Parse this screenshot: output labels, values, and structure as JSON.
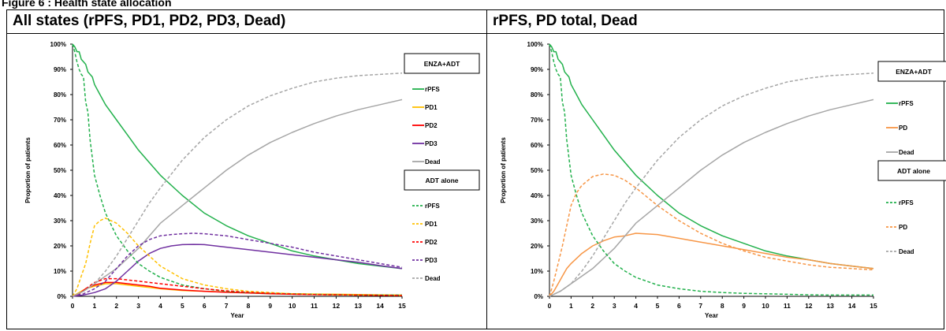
{
  "figure_caption": "Figure 6 : Health state allocation",
  "chart_data": [
    {
      "type": "line",
      "title": "All states (rPFS, PD1, PD2, PD3, Dead)",
      "xlabel": "Year",
      "ylabel": "Proportion of patients",
      "xlim": [
        0,
        15
      ],
      "ylim": [
        0,
        100
      ],
      "x_ticks": [
        "0",
        "1",
        "2",
        "3",
        "4",
        "5",
        "6",
        "7",
        "8",
        "9",
        "10",
        "11",
        "12",
        "13",
        "14",
        "15"
      ],
      "y_ticks": [
        "0%",
        "10%",
        "20%",
        "30%",
        "40%",
        "50%",
        "60%",
        "70%",
        "80%",
        "90%",
        "100%"
      ],
      "legend_groups": [
        {
          "header": "ENZA+ADT",
          "linestyle": "solid",
          "items": [
            "rPFS",
            "PD1",
            "PD2",
            "PD3",
            "Dead"
          ]
        },
        {
          "header": "ADT alone",
          "linestyle": "dashed",
          "items": [
            "rPFS",
            "PD1",
            "PD2",
            "PD3",
            "Dead"
          ]
        }
      ],
      "series": [
        {
          "name": "rPFS",
          "group": "ENZA+ADT",
          "color": "#22b14c",
          "dashed": false,
          "x": [
            0,
            0.1,
            0.2,
            0.3,
            0.4,
            0.5,
            0.6,
            0.7,
            0.8,
            0.9,
            1,
            1.25,
            1.5,
            2,
            2.5,
            3,
            3.5,
            4,
            5,
            6,
            7,
            8,
            9,
            10,
            11,
            12,
            13,
            14,
            15
          ],
          "y": [
            100,
            99,
            97,
            97,
            94,
            93,
            92,
            89,
            88,
            87,
            84,
            80,
            76,
            70,
            64,
            58,
            53,
            48,
            40,
            33,
            28,
            24,
            21,
            18,
            16,
            14.5,
            13,
            12,
            11
          ]
        },
        {
          "name": "PD1",
          "group": "ENZA+ADT",
          "color": "#ffc000",
          "dashed": false,
          "x": [
            0,
            0.3,
            0.6,
            1,
            1.5,
            2,
            2.5,
            3,
            3.5,
            4,
            5,
            6,
            7,
            8,
            9,
            10,
            11,
            12,
            13,
            14,
            15
          ],
          "y": [
            0,
            1.5,
            3,
            4,
            5,
            5,
            4.5,
            4,
            3.5,
            3,
            2.3,
            2,
            1.7,
            1.4,
            1.2,
            1,
            0.9,
            0.8,
            0.7,
            0.6,
            0.5
          ]
        },
        {
          "name": "PD2",
          "group": "ENZA+ADT",
          "color": "#ff0000",
          "dashed": false,
          "x": [
            0,
            0.3,
            0.6,
            1,
            1.5,
            2,
            2.5,
            3,
            3.5,
            4,
            5,
            6,
            7,
            8,
            9,
            10,
            11,
            12,
            13,
            14,
            15
          ],
          "y": [
            0,
            1,
            3,
            4.5,
            5.5,
            5.5,
            5,
            4.5,
            4,
            3.2,
            2.5,
            2,
            1.6,
            1.3,
            1,
            0.8,
            0.7,
            0.6,
            0.5,
            0.4,
            0.4
          ]
        },
        {
          "name": "PD3",
          "group": "ENZA+ADT",
          "color": "#7030a0",
          "dashed": false,
          "x": [
            0,
            0.5,
            1,
            1.5,
            2,
            2.5,
            3,
            3.5,
            4,
            4.5,
            5,
            5.5,
            6,
            7,
            8,
            9,
            10,
            11,
            12,
            13,
            14,
            15
          ],
          "y": [
            0,
            0.5,
            1.5,
            3,
            6,
            10,
            14,
            17,
            19,
            20,
            20.5,
            20.6,
            20.5,
            19.5,
            18.5,
            17.5,
            16.5,
            15.5,
            14.5,
            13.5,
            12.2,
            11
          ]
        },
        {
          "name": "Dead",
          "group": "ENZA+ADT",
          "color": "#a6a6a6",
          "dashed": false,
          "x": [
            0,
            0.5,
            1,
            1.5,
            2,
            2.5,
            3,
            3.5,
            4,
            5,
            6,
            7,
            8,
            9,
            10,
            11,
            12,
            13,
            14,
            15
          ],
          "y": [
            0,
            2,
            5,
            8,
            11,
            15,
            19,
            24,
            29,
            36,
            43,
            50,
            56,
            61,
            65,
            68.5,
            71.5,
            74,
            76,
            78
          ]
        },
        {
          "name": "rPFS",
          "group": "ADT alone",
          "color": "#22b14c",
          "dashed": true,
          "x": [
            0,
            0.1,
            0.2,
            0.3,
            0.4,
            0.5,
            0.55,
            0.6,
            0.7,
            0.8,
            0.9,
            1,
            1.25,
            1.5,
            2,
            2.5,
            3,
            3.5,
            4,
            5,
            6,
            7,
            8,
            9,
            10,
            11,
            12,
            13,
            14,
            15
          ],
          "y": [
            100,
            97,
            93,
            90,
            88,
            87,
            82,
            77,
            73,
            62,
            55,
            48,
            40,
            33,
            24,
            18,
            13,
            10,
            7.5,
            4.5,
            3,
            2,
            1.5,
            1.2,
            1,
            0.8,
            0.6,
            0.5,
            0.5,
            0.5
          ]
        },
        {
          "name": "PD1",
          "group": "ADT alone",
          "color": "#ffc000",
          "dashed": true,
          "x": [
            0,
            0.2,
            0.4,
            0.6,
            0.8,
            1,
            1.25,
            1.5,
            2,
            2.5,
            3,
            3.5,
            4,
            5,
            6,
            7,
            8,
            9,
            10,
            11,
            12,
            13,
            14,
            15
          ],
          "y": [
            0,
            3,
            8,
            13,
            21,
            28,
            30,
            31,
            29,
            25,
            20,
            16,
            12,
            7,
            4.5,
            3,
            2,
            1.5,
            1,
            0.8,
            0.6,
            0.5,
            0.4,
            0.3
          ]
        },
        {
          "name": "PD2",
          "group": "ADT alone",
          "color": "#ff0000",
          "dashed": true,
          "x": [
            0,
            0.3,
            0.6,
            1,
            1.5,
            2,
            2.5,
            3,
            3.5,
            4,
            5,
            6,
            7,
            8,
            9,
            10,
            11,
            12,
            13,
            14,
            15
          ],
          "y": [
            0,
            1,
            3,
            5.5,
            7,
            7,
            6.5,
            6,
            5.5,
            5,
            4,
            3,
            2.2,
            1.6,
            1.2,
            0.9,
            0.7,
            0.6,
            0.5,
            0.4,
            0.3
          ]
        },
        {
          "name": "PD3",
          "group": "ADT alone",
          "color": "#7030a0",
          "dashed": true,
          "x": [
            0,
            0.5,
            1,
            1.5,
            2,
            2.5,
            3,
            3.5,
            4,
            4.5,
            5,
            5.5,
            6,
            7,
            8,
            9,
            10,
            11,
            12,
            13,
            14,
            15
          ],
          "y": [
            0,
            1,
            3,
            6,
            11,
            16,
            20,
            22.5,
            24,
            24.5,
            24.8,
            25,
            24.8,
            24,
            22.5,
            21,
            19.5,
            17.5,
            16,
            14.5,
            13,
            11.5
          ]
        },
        {
          "name": "Dead",
          "group": "ADT alone",
          "color": "#a6a6a6",
          "dashed": true,
          "x": [
            0,
            0.5,
            1,
            1.5,
            2,
            2.5,
            3,
            3.5,
            4,
            5,
            6,
            7,
            8,
            9,
            10,
            11,
            12,
            13,
            14,
            15
          ],
          "y": [
            0,
            2,
            5,
            10,
            16,
            23,
            30,
            37,
            43,
            54,
            63,
            70,
            75.5,
            79.5,
            82.5,
            85,
            86.5,
            87.5,
            88,
            88.5
          ]
        }
      ]
    },
    {
      "type": "line",
      "title": "rPFS, PD total, Dead",
      "xlabel": "Year",
      "ylabel": "Proportion of patients",
      "xlim": [
        0,
        15
      ],
      "ylim": [
        0,
        100
      ],
      "x_ticks": [
        "0",
        "1",
        "2",
        "3",
        "4",
        "5",
        "6",
        "7",
        "8",
        "9",
        "10",
        "11",
        "12",
        "13",
        "14",
        "15"
      ],
      "y_ticks": [
        "0%",
        "10%",
        "20%",
        "30%",
        "40%",
        "50%",
        "60%",
        "70%",
        "80%",
        "90%",
        "100%"
      ],
      "legend_groups": [
        {
          "header": "ENZA+ADT",
          "linestyle": "solid",
          "items": [
            "rPFS",
            "PD",
            "Dead"
          ]
        },
        {
          "header": "ADT alone",
          "linestyle": "dashed",
          "items": [
            "rPFS",
            "PD",
            "Dead"
          ]
        }
      ],
      "series": [
        {
          "name": "rPFS",
          "group": "ENZA+ADT",
          "color": "#22b14c",
          "dashed": false,
          "x": [
            0,
            0.1,
            0.2,
            0.3,
            0.4,
            0.5,
            0.6,
            0.7,
            0.8,
            0.9,
            1,
            1.25,
            1.5,
            2,
            2.5,
            3,
            3.5,
            4,
            5,
            6,
            7,
            8,
            9,
            10,
            11,
            12,
            13,
            14,
            15
          ],
          "y": [
            100,
            99,
            97,
            97,
            94,
            93,
            92,
            89,
            88,
            87,
            84,
            80,
            76,
            70,
            64,
            58,
            53,
            48,
            40,
            33,
            28,
            24,
            21,
            18,
            16,
            14.5,
            13,
            12,
            11
          ]
        },
        {
          "name": "PD",
          "group": "ENZA+ADT",
          "color": "#f79646",
          "dashed": false,
          "x": [
            0,
            0.2,
            0.4,
            0.6,
            0.8,
            1,
            1.5,
            2,
            2.5,
            3,
            3.5,
            4,
            5,
            6,
            7,
            8,
            9,
            10,
            11,
            12,
            13,
            14,
            15
          ],
          "y": [
            0,
            2,
            5,
            8,
            11,
            13,
            17,
            20,
            22,
            23.5,
            24,
            25,
            24.5,
            23,
            21.5,
            20,
            18.5,
            17,
            15.5,
            14.5,
            13,
            12,
            11
          ]
        },
        {
          "name": "Dead",
          "group": "ENZA+ADT",
          "color": "#a6a6a6",
          "dashed": false,
          "x": [
            0,
            0.5,
            1,
            1.5,
            2,
            2.5,
            3,
            3.5,
            4,
            5,
            6,
            7,
            8,
            9,
            10,
            11,
            12,
            13,
            14,
            15
          ],
          "y": [
            0,
            2,
            5,
            8,
            11,
            15,
            19,
            24,
            29,
            36,
            43,
            50,
            56,
            61,
            65,
            68.5,
            71.5,
            74,
            76,
            78
          ]
        },
        {
          "name": "rPFS",
          "group": "ADT alone",
          "color": "#22b14c",
          "dashed": true,
          "x": [
            0,
            0.1,
            0.2,
            0.3,
            0.4,
            0.5,
            0.55,
            0.6,
            0.7,
            0.8,
            0.9,
            1,
            1.25,
            1.5,
            2,
            2.5,
            3,
            3.5,
            4,
            5,
            6,
            7,
            8,
            9,
            10,
            11,
            12,
            13,
            14,
            15
          ],
          "y": [
            100,
            97,
            93,
            90,
            88,
            87,
            82,
            77,
            73,
            62,
            55,
            48,
            40,
            33,
            24,
            18,
            13,
            10,
            7.5,
            4.5,
            3,
            2,
            1.5,
            1.2,
            1,
            0.8,
            0.6,
            0.5,
            0.5,
            0.5
          ]
        },
        {
          "name": "PD",
          "group": "ADT alone",
          "color": "#f79646",
          "dashed": true,
          "x": [
            0,
            0.2,
            0.4,
            0.6,
            0.8,
            1,
            1.25,
            1.5,
            2,
            2.5,
            3,
            3.5,
            4,
            5,
            6,
            7,
            8,
            9,
            10,
            11,
            12,
            13,
            14,
            15
          ],
          "y": [
            0,
            6,
            13,
            20,
            28,
            36,
            41,
            44,
            47.5,
            48.5,
            48,
            46,
            43,
            36,
            30,
            25,
            21,
            18,
            15.5,
            14,
            12.5,
            11.5,
            11,
            10.5
          ]
        },
        {
          "name": "Dead",
          "group": "ADT alone",
          "color": "#a6a6a6",
          "dashed": true,
          "x": [
            0,
            0.5,
            1,
            1.5,
            2,
            2.5,
            3,
            3.5,
            4,
            5,
            6,
            7,
            8,
            9,
            10,
            11,
            12,
            13,
            14,
            15
          ],
          "y": [
            0,
            2,
            5,
            10,
            16,
            23,
            30,
            37,
            43,
            54,
            63,
            70,
            75.5,
            79.5,
            82.5,
            85,
            86.5,
            87.5,
            88,
            88.5
          ]
        }
      ]
    }
  ]
}
